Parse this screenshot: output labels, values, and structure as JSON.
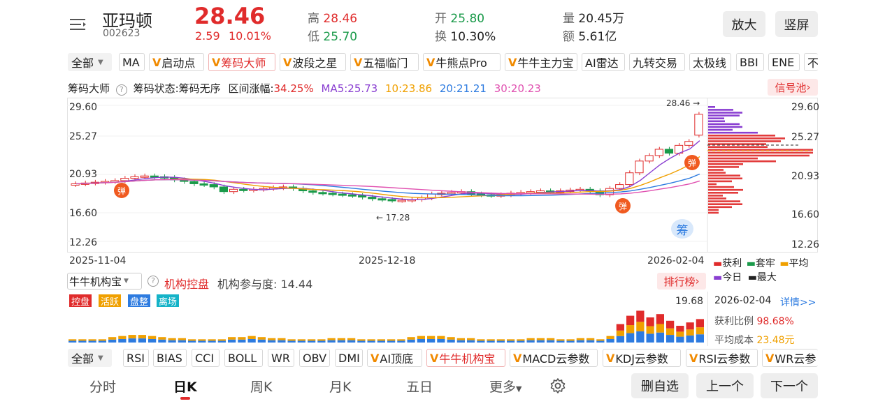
{
  "header": {
    "menu_icon": "menu-icon",
    "name": "亚玛顿",
    "code": "002623",
    "price": "28.46",
    "change": "2.59",
    "change_pct": "10.01%",
    "high_label": "高",
    "high": "28.46",
    "low_label": "低",
    "low": "25.70",
    "open_label": "开",
    "open": "25.80",
    "turnover_label": "换",
    "turnover": "10.30%",
    "volume_label": "量",
    "volume": "20.45万",
    "amount_label": "额",
    "amount": "5.61亿",
    "zoom_btn": "放大",
    "portrait_btn": "竖屏"
  },
  "indicator_bar": {
    "all": "全部",
    "items": [
      "MA",
      "启动点",
      "筹码大师",
      "波段之星",
      "五福临门",
      "牛熊点Pro",
      "牛牛主力宝",
      "AI雷达",
      "九转交易",
      "太极线",
      "BBI",
      "ENE",
      "不"
    ]
  },
  "chip_info": {
    "name": "筹码大师",
    "status_label": "筹码状态:",
    "status": "筹码无序",
    "range_label": "区间涨幅:",
    "range": "34.25%",
    "ma5": "MA5:25.73",
    "ma10": "10:23.86",
    "ma20": "20:21.21",
    "ma30": "30:20.23",
    "signal_pool": "信号池"
  },
  "kline": {
    "y_left": [
      "29.60",
      "25.27",
      "20.93",
      "16.60",
      "12.26"
    ],
    "y_right": [
      "29.60",
      "25.27",
      "20.93",
      "16.60",
      "12.26"
    ],
    "dates": [
      "2025-11-04",
      "2025-12-18",
      "2026-02-04"
    ],
    "max_label": "28.46",
    "min_label": "17.28",
    "bounce": "弹",
    "chip_badge": "筹",
    "colors": {
      "up": "#e02b2b",
      "down": "#1a9a4a",
      "ma5": "#8a3fd1",
      "ma10": "#f0a000",
      "ma20": "#2d7be0",
      "ma30": "#e050b0"
    }
  },
  "chip_legend": {
    "profit": "获利",
    "trap": "套牢",
    "avg": "平均",
    "today": "今日",
    "max": "最大"
  },
  "org": {
    "select": "牛牛机构宝",
    "title": "机构控盘",
    "participation": "机构参与度: 14.44",
    "rank": "排行榜",
    "max_val": "19.68",
    "tags": [
      "控盘",
      "活跃",
      "盘整",
      "离场"
    ],
    "info_date": "2026-02-04",
    "detail": "详情>>",
    "profit_ratio_label": "获利比例",
    "profit_ratio": "98.68%",
    "avg_cost_label": "平均成本",
    "avg_cost": "23.48元"
  },
  "indicator_bar2": {
    "all": "全部",
    "items": [
      "RSI",
      "BIAS",
      "CCI",
      "BOLL",
      "WR",
      "OBV",
      "DMI",
      "AI顶底",
      "牛牛机构宝",
      "MACD云参数",
      "KDJ云参数",
      "RSI云参数",
      "WR云参"
    ]
  },
  "period_tabs": [
    "分时",
    "日K",
    "周K",
    "月K",
    "五日",
    "更多"
  ],
  "actions": {
    "settings_icon": "gear-icon",
    "remove": "删自选",
    "prev": "上一个",
    "next": "下一个"
  }
}
